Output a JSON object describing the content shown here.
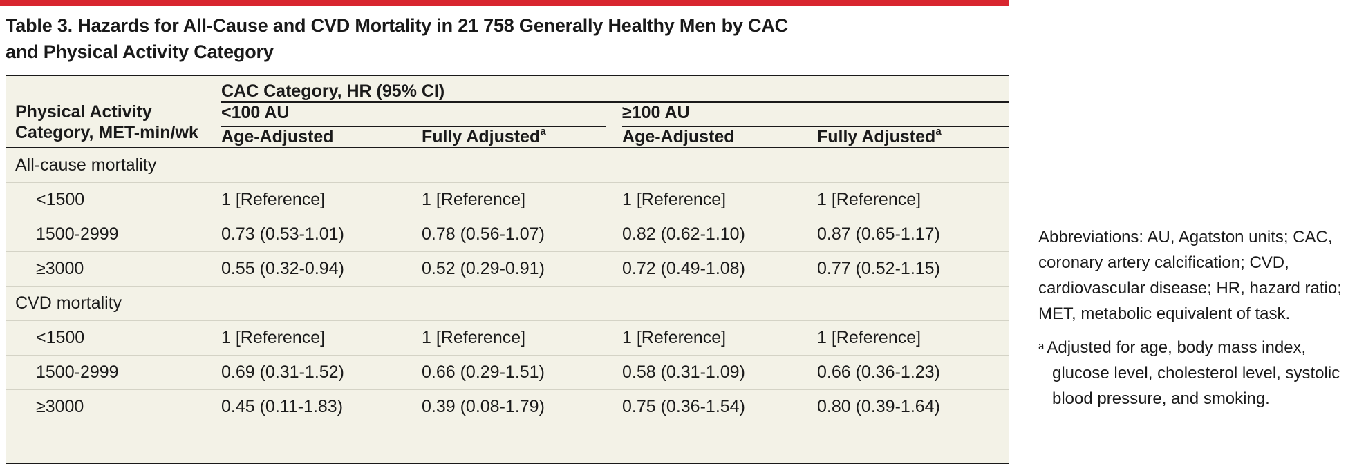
{
  "title_line1": "Table 3. Hazards for All-Cause and CVD Mortality in 21 758 Generally Healthy Men by CAC",
  "title_line2": "and Physical Activity Category",
  "header": {
    "row_label_line1": "Physical Activity",
    "row_label_line2": "Category, MET-min/wk",
    "spanner": "CAC Category, HR (95% CI)",
    "groups": [
      "<100 AU",
      "≥100 AU"
    ],
    "age_adjusted": "Age-Adjusted",
    "fully_adjusted": "Fully Adjusted",
    "footnote_mark": "a"
  },
  "sections": [
    {
      "label": "All-cause mortality",
      "rows": [
        {
          "category": "<1500",
          "cells": [
            "1 [Reference]",
            "1 [Reference]",
            "1 [Reference]",
            "1 [Reference]"
          ]
        },
        {
          "category": "1500-2999",
          "cells": [
            "0.73 (0.53-1.01)",
            "0.78 (0.56-1.07)",
            "0.82 (0.62-1.10)",
            "0.87 (0.65-1.17)"
          ]
        },
        {
          "category": "≥3000",
          "cells": [
            "0.55 (0.32-0.94)",
            "0.52 (0.29-0.91)",
            "0.72 (0.49-1.08)",
            "0.77 (0.52-1.15)"
          ]
        }
      ]
    },
    {
      "label": "CVD mortality",
      "rows": [
        {
          "category": "<1500",
          "cells": [
            "1 [Reference]",
            "1 [Reference]",
            "1 [Reference]",
            "1 [Reference]"
          ]
        },
        {
          "category": "1500-2999",
          "cells": [
            "0.69 (0.31-1.52)",
            "0.66 (0.29-1.51)",
            "0.58 (0.31-1.09)",
            "0.66 (0.36-1.23)"
          ]
        },
        {
          "category": "≥3000",
          "cells": [
            "0.45 (0.11-1.83)",
            "0.39 (0.08-1.79)",
            "0.75 (0.36-1.54)",
            "0.80 (0.39-1.64)"
          ]
        }
      ]
    }
  ],
  "notes": {
    "abbreviations": "Abbreviations: AU, Agatston units; CAC, coronary artery calcification; CVD, cardiovascular disease; HR, hazard ratio; MET, metabolic equivalent of task.",
    "footnote_mark": "a",
    "footnote_text": "Adjusted for age, body mass index, glucose level, cholesterol level, systolic blood pressure, and smoking."
  },
  "colors": {
    "accent_rule": "#d8262f",
    "table_background": "#f3f2e7"
  }
}
